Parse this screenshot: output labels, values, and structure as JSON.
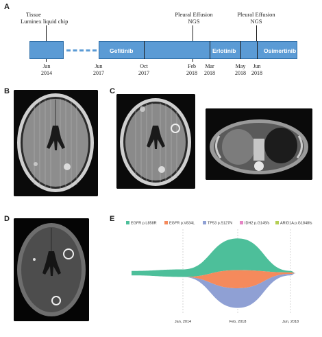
{
  "panels": {
    "a": "A",
    "b": "B",
    "c": "C",
    "d": "D",
    "e": "E"
  },
  "timeline": {
    "annotations": [
      {
        "id": "tissue",
        "lines": [
          "Tissue",
          "Luminex liquid chip"
        ]
      },
      {
        "id": "pleural1",
        "lines": [
          "Pleural Effusion",
          "NGS"
        ]
      },
      {
        "id": "pleural2",
        "lines": [
          "Pleural Effusion",
          "NGS"
        ]
      }
    ],
    "therapies": [
      {
        "id": "gefitinib",
        "label": "Gefitinib"
      },
      {
        "id": "erlotinib",
        "label": "Erlotinib"
      },
      {
        "id": "osimertinib",
        "label": "Osimertinib"
      }
    ],
    "dates": [
      {
        "id": "jan2014",
        "month": "Jan",
        "year": "2014"
      },
      {
        "id": "jun2017",
        "month": "Jun",
        "year": "2017"
      },
      {
        "id": "oct2017",
        "month": "Oct",
        "year": "2017"
      },
      {
        "id": "feb2018",
        "month": "Feb",
        "year": "2018"
      },
      {
        "id": "mar2018",
        "month": "Mar",
        "year": "2018"
      },
      {
        "id": "may2018",
        "month": "May",
        "year": "2018"
      },
      {
        "id": "jun2018",
        "month": "Jun",
        "year": "2018"
      }
    ],
    "bar_color": "#5b9bd5"
  },
  "chart_data": {
    "type": "area",
    "style": "streamgraph",
    "x": [
      "Jan, 2014",
      "Feb, 2018",
      "Jun, 2018"
    ],
    "series": [
      {
        "name": "EGFR p.L858R",
        "color": "#4dbf9a",
        "values": [
          0.1,
          0.42,
          0.02
        ]
      },
      {
        "name": "EGFR p.V834L",
        "color": "#f58a5c",
        "values": [
          0.0,
          0.24,
          0.02
        ]
      },
      {
        "name": "TP53 p.S127N",
        "color": "#8fa0d4",
        "values": [
          0.0,
          0.26,
          0.02
        ]
      },
      {
        "name": "IDH2 p.G145fs",
        "color": "#e585c4",
        "values": [
          0.0,
          0.0,
          0.0
        ]
      },
      {
        "name": "ARID1A p.G1848fs",
        "color": "#b5cf55",
        "values": [
          0.0,
          0.0,
          0.0
        ]
      }
    ],
    "legend": "top",
    "grid": "vertical-dashed"
  }
}
